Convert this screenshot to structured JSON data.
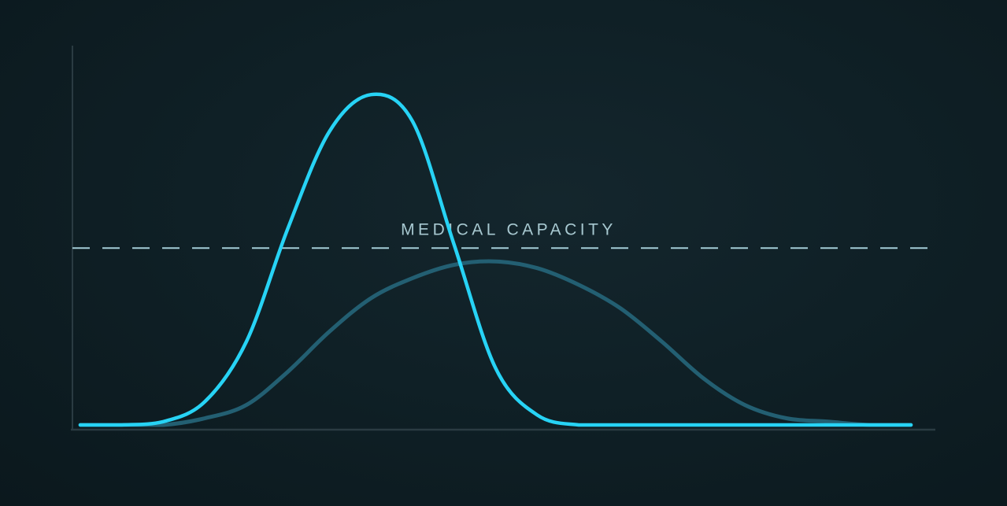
{
  "chart_data": {
    "type": "line",
    "title": "",
    "xlabel": "",
    "ylabel": "",
    "x_range": [
      0,
      1
    ],
    "y_range": [
      0,
      1
    ],
    "show_ticks": false,
    "grid": false,
    "series": [
      {
        "id": "tall-peak",
        "x": [
          0.0,
          0.05,
          0.1,
          0.15,
          0.2,
          0.25,
          0.3,
          0.35,
          0.4,
          0.45,
          0.5,
          0.55,
          0.6,
          0.65,
          0.7,
          0.75,
          0.8,
          0.85,
          0.9,
          0.95,
          1.0
        ],
        "y": [
          0.0,
          0.0,
          0.01,
          0.07,
          0.25,
          0.59,
          0.88,
          0.99,
          0.91,
          0.54,
          0.17,
          0.03,
          0.0,
          0.0,
          0.0,
          0.0,
          0.0,
          0.0,
          0.0,
          0.0,
          0.0
        ],
        "color": "#27d3f5"
      },
      {
        "id": "flattened",
        "x": [
          0.0,
          0.05,
          0.1,
          0.15,
          0.2,
          0.25,
          0.3,
          0.35,
          0.4,
          0.45,
          0.5,
          0.55,
          0.6,
          0.65,
          0.7,
          0.75,
          0.8,
          0.85,
          0.9,
          0.95,
          1.0
        ],
        "y": [
          0.0,
          0.0,
          0.0,
          0.02,
          0.06,
          0.16,
          0.28,
          0.38,
          0.44,
          0.48,
          0.49,
          0.47,
          0.42,
          0.35,
          0.25,
          0.14,
          0.06,
          0.02,
          0.01,
          0.0,
          0.0
        ],
        "color": "#235f72"
      }
    ],
    "threshold": {
      "label": "MEDICAL CAPACITY",
      "y": 0.53,
      "color": "#a3ccd6",
      "style": "dashed"
    },
    "axis_color": "#2a3b42",
    "background": "#0f1f25"
  }
}
